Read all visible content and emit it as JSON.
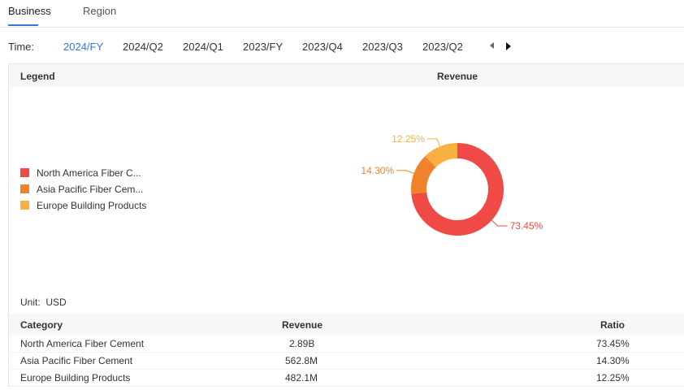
{
  "tabs": [
    {
      "label": "Business",
      "active": true
    },
    {
      "label": "Region",
      "active": false
    }
  ],
  "time": {
    "label": "Time",
    "periods": [
      "2024/FY",
      "2024/Q2",
      "2024/Q1",
      "2023/FY",
      "2023/Q4",
      "2023/Q3",
      "2023/Q2"
    ],
    "selected": "2024/FY"
  },
  "panel": {
    "legend_title": "Legend",
    "chart_title": "Revenue",
    "legend": [
      {
        "label": "North America Fiber C...",
        "color": "#ef4a45"
      },
      {
        "label": "Asia Pacific Fiber Cem...",
        "color": "#f0822c"
      },
      {
        "label": "Europe Building Products",
        "color": "#f8b040"
      }
    ],
    "unit_label": "Unit",
    "unit_value": "USD"
  },
  "chart_data": {
    "type": "pie",
    "title": "Revenue",
    "donut": true,
    "categories": [
      "North America Fiber Cement",
      "Asia Pacific Fiber Cement",
      "Europe Building Products"
    ],
    "values": [
      73.45,
      14.3,
      12.25
    ],
    "data_labels": [
      "73.45%",
      "14.30%",
      "12.25%"
    ],
    "colors": [
      "#ef4a45",
      "#f0822c",
      "#f8b040"
    ]
  },
  "table": {
    "headers": [
      "Category",
      "Revenue",
      "Ratio"
    ],
    "rows": [
      [
        "North America Fiber Cement",
        "2.89B",
        "73.45%"
      ],
      [
        "Asia Pacific Fiber Cement",
        "562.8M",
        "14.30%"
      ],
      [
        "Europe Building Products",
        "482.1M",
        "12.25%"
      ]
    ]
  }
}
